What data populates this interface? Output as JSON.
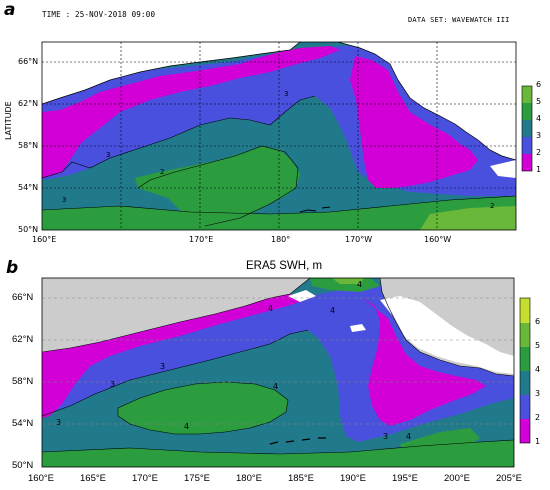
{
  "panel_a": {
    "letter": "a",
    "time_label": "TIME : 25-NOV-2018 09:00",
    "dataset_label": "DATA SET: WAVEWATCH III",
    "y_axis_label": "LATITUDE",
    "lat_labels": [
      "66°N",
      "62°N",
      "58°N",
      "54°N",
      "50°N"
    ],
    "lon_labels": [
      "160°E",
      "170°E",
      "180°",
      "170°W",
      "160°W"
    ],
    "colorbar_labels": [
      "1",
      "2",
      "3",
      "4",
      "5",
      "6"
    ],
    "contour_labels": [
      "3",
      "3",
      "2",
      "3",
      "2"
    ]
  },
  "panel_b": {
    "letter": "b",
    "title": "ERA5 SWH, m",
    "lat_labels": [
      "66°N",
      "62°N",
      "58°N",
      "54°N",
      "50°N"
    ],
    "lon_labels": [
      "160°E",
      "165°E",
      "170°E",
      "175°E",
      "180°E",
      "185°E",
      "190°E",
      "195°E",
      "200°E",
      "205°E"
    ],
    "colorbar_labels": [
      "1",
      "2",
      "3",
      "4",
      "5",
      "6"
    ],
    "contour_labels": [
      "3",
      "4",
      "4",
      "3",
      "3",
      "4",
      "4",
      "4",
      "4",
      "3"
    ]
  },
  "colors": {
    "level_1": "#d200d6",
    "level_2": "#4a50de",
    "level_3": "#217a8c",
    "level_4": "#2c9d3f",
    "level_5": "#6ab83a",
    "level_6": "#c6de2f",
    "land_a": "#ffffff",
    "land_b": "#cccccc"
  }
}
